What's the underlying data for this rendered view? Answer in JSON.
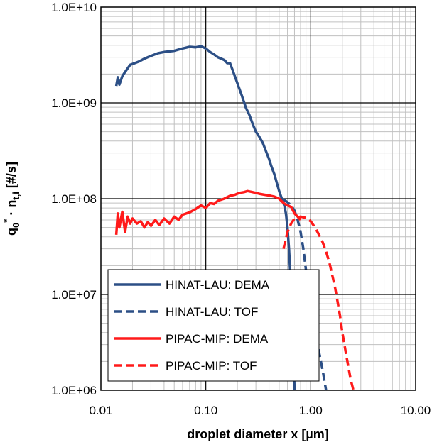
{
  "chart_data": {
    "type": "line",
    "xscale": "log",
    "yscale": "log",
    "xlim": [
      0.01,
      10
    ],
    "ylim": [
      1000000,
      10000000000
    ],
    "grid": true,
    "xlabel": "droplet diameter x [µm]",
    "ylabel": {
      "q": "q",
      "sub0": "0",
      "star": "*",
      "mid": " · n",
      "subti": "t,i",
      "unit": " [#/s]"
    },
    "x_ticks": [
      "0.01",
      "0.10",
      "1.00",
      "10.00"
    ],
    "y_ticks": [
      "1.0E+06",
      "1.0E+07",
      "1.0E+08",
      "1.0E+09",
      "1.0E+10"
    ],
    "legend_position": "lower-left",
    "series": [
      {
        "name": "HINAT-LAU: DEMA",
        "color": "#2c4f86",
        "dash": "solid",
        "points": [
          [
            0.014,
            1500000000.0
          ],
          [
            0.0145,
            1850000000.0
          ],
          [
            0.015,
            1550000000.0
          ],
          [
            0.016,
            1900000000.0
          ],
          [
            0.017,
            2100000000.0
          ],
          [
            0.018,
            2300000000.0
          ],
          [
            0.019,
            2500000000.0
          ],
          [
            0.021,
            2600000000.0
          ],
          [
            0.023,
            2700000000.0
          ],
          [
            0.026,
            2900000000.0
          ],
          [
            0.03,
            3100000000.0
          ],
          [
            0.035,
            3300000000.0
          ],
          [
            0.04,
            3400000000.0
          ],
          [
            0.05,
            3500000000.0
          ],
          [
            0.06,
            3700000000.0
          ],
          [
            0.07,
            3850000000.0
          ],
          [
            0.08,
            3800000000.0
          ],
          [
            0.09,
            3900000000.0
          ],
          [
            0.1,
            3700000000.0
          ],
          [
            0.11,
            3400000000.0
          ],
          [
            0.12,
            3200000000.0
          ],
          [
            0.13,
            3000000000.0
          ],
          [
            0.14,
            2900000000.0
          ],
          [
            0.15,
            2800000000.0
          ],
          [
            0.16,
            2600000000.0
          ],
          [
            0.17,
            2600000000.0
          ],
          [
            0.18,
            2200000000.0
          ],
          [
            0.2,
            1600000000.0
          ],
          [
            0.22,
            1200000000.0
          ],
          [
            0.24,
            900000000.0
          ],
          [
            0.26,
            750000000.0
          ],
          [
            0.28,
            600000000.0
          ],
          [
            0.3,
            500000000.0
          ],
          [
            0.32,
            450000000.0
          ],
          [
            0.35,
            380000000.0
          ],
          [
            0.38,
            300000000.0
          ],
          [
            0.4,
            260000000.0
          ],
          [
            0.42,
            220000000.0
          ],
          [
            0.45,
            180000000.0
          ],
          [
            0.48,
            140000000.0
          ],
          [
            0.5,
            120000000.0
          ],
          [
            0.53,
            100000000.0
          ],
          [
            0.56,
            85000000.0
          ],
          [
            0.58,
            70000000.0
          ],
          [
            0.6,
            50000000.0
          ],
          [
            0.62,
            30000000.0
          ],
          [
            0.64,
            16000000.0
          ],
          [
            0.66,
            7000000.0
          ],
          [
            0.68,
            3000000.0
          ],
          [
            0.7,
            1000000.0
          ]
        ]
      },
      {
        "name": "HINAT-LAU: TOF",
        "color": "#2c4f86",
        "dash": "dashed",
        "points": [
          [
            0.55,
            98000000.0
          ],
          [
            0.6,
            92000000.0
          ],
          [
            0.65,
            85000000.0
          ],
          [
            0.7,
            75000000.0
          ],
          [
            0.75,
            60000000.0
          ],
          [
            0.8,
            45000000.0
          ],
          [
            0.85,
            30000000.0
          ],
          [
            0.9,
            18000000.0
          ],
          [
            0.95,
            12000000.0
          ],
          [
            1.0,
            8000000.0
          ],
          [
            1.1,
            4000000.0
          ],
          [
            1.2,
            2500000.0
          ],
          [
            1.3,
            1600000.0
          ],
          [
            1.4,
            1000000.0
          ]
        ]
      },
      {
        "name": "PIPAC-MIP: DEMA",
        "color": "#ff1a1a",
        "dash": "solid",
        "points": [
          [
            0.014,
            42000000.0
          ],
          [
            0.0145,
            70000000.0
          ],
          [
            0.015,
            50000000.0
          ],
          [
            0.016,
            73000000.0
          ],
          [
            0.017,
            45000000.0
          ],
          [
            0.018,
            65000000.0
          ],
          [
            0.019,
            55000000.0
          ],
          [
            0.02,
            62000000.0
          ],
          [
            0.022,
            55000000.0
          ],
          [
            0.024,
            58000000.0
          ],
          [
            0.026,
            50000000.0
          ],
          [
            0.028,
            57000000.0
          ],
          [
            0.03,
            52000000.0
          ],
          [
            0.033,
            60000000.0
          ],
          [
            0.036,
            53000000.0
          ],
          [
            0.04,
            62000000.0
          ],
          [
            0.045,
            55000000.0
          ],
          [
            0.05,
            65000000.0
          ],
          [
            0.055,
            60000000.0
          ],
          [
            0.06,
            68000000.0
          ],
          [
            0.07,
            72000000.0
          ],
          [
            0.08,
            78000000.0
          ],
          [
            0.09,
            85000000.0
          ],
          [
            0.1,
            80000000.0
          ],
          [
            0.11,
            90000000.0
          ],
          [
            0.12,
            88000000.0
          ],
          [
            0.13,
            95000000.0
          ],
          [
            0.15,
            100000000.0
          ],
          [
            0.17,
            107000000.0
          ],
          [
            0.19,
            110000000.0
          ],
          [
            0.21,
            115000000.0
          ],
          [
            0.23,
            117000000.0
          ],
          [
            0.25,
            120000000.0
          ],
          [
            0.27,
            118000000.0
          ],
          [
            0.3,
            115000000.0
          ],
          [
            0.33,
            112000000.0
          ],
          [
            0.36,
            110000000.0
          ],
          [
            0.4,
            108000000.0
          ],
          [
            0.45,
            105000000.0
          ],
          [
            0.5,
            100000000.0
          ],
          [
            0.55,
            90000000.0
          ],
          [
            0.6,
            85000000.0
          ],
          [
            0.65,
            82000000.0
          ],
          [
            0.7,
            70000000.0
          ],
          [
            0.75,
            65000000.0
          ],
          [
            0.8,
            60000000.0
          ]
        ]
      },
      {
        "name": "PIPAC-MIP: TOF",
        "color": "#ff1a1a",
        "dash": "dashed",
        "points": [
          [
            0.55,
            30000000.0
          ],
          [
            0.6,
            45000000.0
          ],
          [
            0.65,
            55000000.0
          ],
          [
            0.7,
            62000000.0
          ],
          [
            0.8,
            65000000.0
          ],
          [
            0.9,
            63000000.0
          ],
          [
            1.0,
            58000000.0
          ],
          [
            1.1,
            50000000.0
          ],
          [
            1.2,
            42000000.0
          ],
          [
            1.3,
            35000000.0
          ],
          [
            1.4,
            28000000.0
          ],
          [
            1.5,
            22000000.0
          ],
          [
            1.6,
            16000000.0
          ],
          [
            1.7,
            12000000.0
          ],
          [
            1.8,
            8500000.0
          ],
          [
            1.9,
            6000000.0
          ],
          [
            2.0,
            4000000.0
          ],
          [
            2.2,
            2200000.0
          ],
          [
            2.4,
            1300000.0
          ],
          [
            2.55,
            1000000.0
          ]
        ]
      }
    ]
  }
}
